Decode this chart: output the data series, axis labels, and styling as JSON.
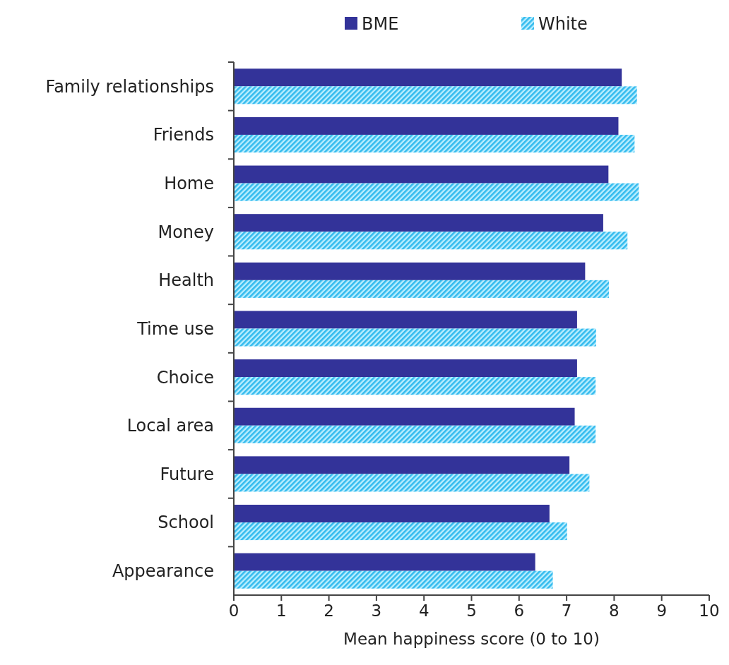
{
  "chart_data": {
    "type": "bar",
    "orientation": "horizontal",
    "categories": [
      "Family relationships",
      "Friends",
      "Home",
      "Money",
      "Health",
      "Time use",
      "Choice",
      "Local area",
      "Future",
      "School",
      "Appearance"
    ],
    "series": [
      {
        "name": "BME",
        "color": "#333399",
        "values": [
          8.16,
          8.09,
          7.88,
          7.77,
          7.39,
          7.22,
          7.22,
          7.17,
          7.06,
          6.64,
          6.34
        ]
      },
      {
        "name": "White",
        "color": "#33bbee",
        "values": [
          8.48,
          8.43,
          8.52,
          8.28,
          7.89,
          7.62,
          7.61,
          7.61,
          7.48,
          7.01,
          6.71
        ]
      }
    ],
    "xlabel": "Mean happiness score (0 to 10)",
    "xlim": [
      0,
      10
    ],
    "xticks": [
      0,
      1,
      2,
      3,
      4,
      5,
      6,
      7,
      8,
      9,
      10
    ],
    "grid": false,
    "legend": "top"
  }
}
